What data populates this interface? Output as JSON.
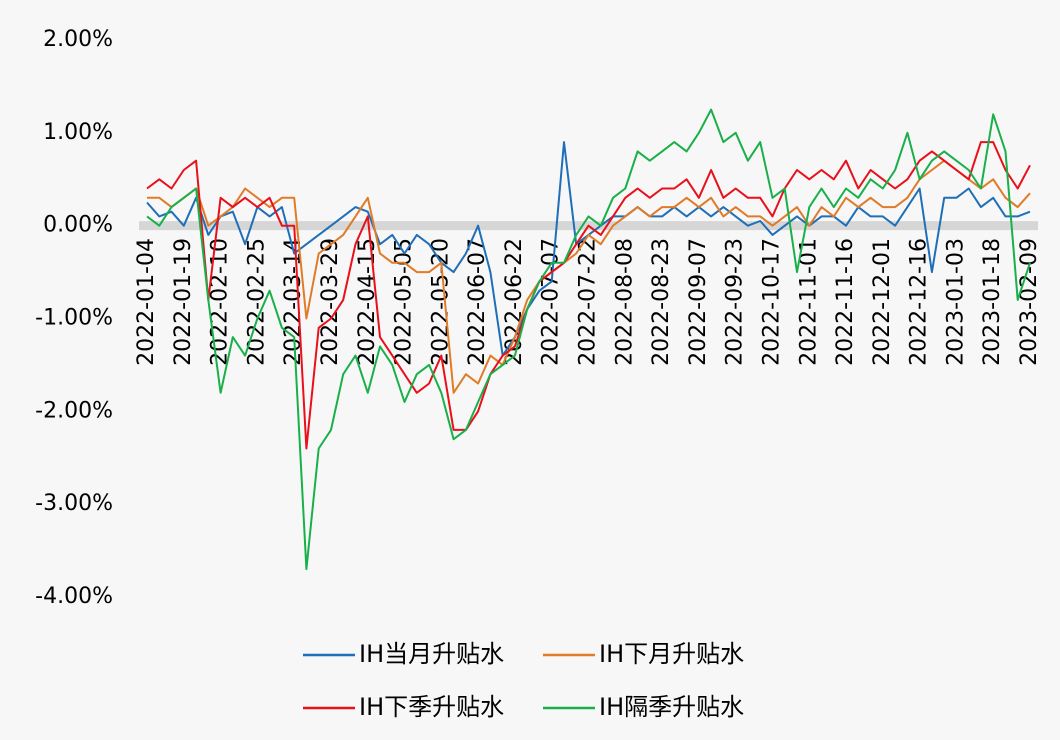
{
  "chart_data": {
    "type": "line",
    "categories": [
      "2022-01-04",
      null,
      null,
      "2022-01-19",
      null,
      null,
      "2022-02-10",
      null,
      null,
      "2022-02-25",
      null,
      null,
      "2022-03-14",
      null,
      null,
      "2022-03-29",
      null,
      null,
      "2022-04-15",
      null,
      null,
      "2022-05-05",
      null,
      null,
      "2022-05-20",
      null,
      null,
      "2022-06-07",
      null,
      null,
      "2022-06-22",
      null,
      null,
      "2022-07-07",
      null,
      null,
      "2022-07-22",
      null,
      null,
      "2022-08-08",
      null,
      null,
      "2022-08-23",
      null,
      null,
      "2022-09-07",
      null,
      null,
      "2022-09-23",
      null,
      null,
      "2022-10-17",
      null,
      null,
      "2022-11-01",
      null,
      null,
      "2022-11-16",
      null,
      null,
      "2022-12-01",
      null,
      null,
      "2022-12-16",
      null,
      null,
      "2023-01-03",
      null,
      null,
      "2023-01-18",
      null,
      null,
      "2023-02-09"
    ],
    "series": [
      {
        "name": "IH当月升贴水",
        "color": "#1f6fb8",
        "values": [
          0.25,
          0.1,
          0.15,
          0.0,
          0.3,
          -0.1,
          0.1,
          0.15,
          -0.2,
          0.2,
          0.1,
          0.2,
          -0.3,
          -0.2,
          -0.1,
          0.0,
          0.1,
          0.2,
          0.15,
          -0.2,
          -0.1,
          -0.3,
          -0.1,
          -0.2,
          -0.4,
          -0.5,
          -0.3,
          0.0,
          -0.5,
          -1.4,
          -1.2,
          -0.9,
          -0.7,
          -0.6,
          0.9,
          -0.2,
          -0.1,
          0.0,
          0.1,
          0.1,
          0.2,
          0.1,
          0.1,
          0.2,
          0.1,
          0.2,
          0.1,
          0.2,
          0.1,
          0.0,
          0.05,
          -0.1,
          0.0,
          0.1,
          0.0,
          0.1,
          0.1,
          0.0,
          0.2,
          0.1,
          0.1,
          0.0,
          0.2,
          0.4,
          -0.5,
          0.3,
          0.3,
          0.4,
          0.2,
          0.3,
          0.1,
          0.1,
          0.15
        ]
      },
      {
        "name": "IH下月升贴水",
        "color": "#e07b28",
        "values": [
          0.3,
          0.3,
          0.2,
          0.3,
          0.4,
          0.0,
          0.1,
          0.2,
          0.4,
          0.3,
          0.2,
          0.3,
          0.3,
          -1.0,
          -0.3,
          -0.2,
          -0.1,
          0.1,
          0.3,
          -0.3,
          -0.4,
          -0.4,
          -0.5,
          -0.5,
          -0.4,
          -1.8,
          -1.6,
          -1.7,
          -1.4,
          -1.5,
          -1.2,
          -0.8,
          -0.6,
          -0.5,
          -0.4,
          -0.3,
          -0.1,
          -0.2,
          0.0,
          0.1,
          0.2,
          0.1,
          0.2,
          0.2,
          0.3,
          0.2,
          0.3,
          0.1,
          0.2,
          0.1,
          0.1,
          0.0,
          0.1,
          0.2,
          0.0,
          0.2,
          0.1,
          0.3,
          0.2,
          0.3,
          0.2,
          0.2,
          0.3,
          0.5,
          0.6,
          0.7,
          0.6,
          0.5,
          0.4,
          0.5,
          0.3,
          0.2,
          0.35
        ]
      },
      {
        "name": "IH下季升贴水",
        "color": "#e8101a",
        "values": [
          0.4,
          0.5,
          0.4,
          0.6,
          0.7,
          -0.8,
          0.3,
          0.2,
          0.3,
          0.2,
          0.3,
          0.0,
          0.0,
          -2.4,
          -1.1,
          -1.0,
          -0.8,
          -0.2,
          0.1,
          -1.2,
          -1.4,
          -1.6,
          -1.8,
          -1.7,
          -1.4,
          -2.2,
          -2.2,
          -2.0,
          -1.6,
          -1.4,
          -1.3,
          -0.9,
          -0.6,
          -0.5,
          -0.4,
          -0.2,
          0.0,
          -0.1,
          0.1,
          0.3,
          0.4,
          0.3,
          0.4,
          0.4,
          0.5,
          0.3,
          0.6,
          0.3,
          0.4,
          0.3,
          0.3,
          0.1,
          0.4,
          0.6,
          0.5,
          0.6,
          0.5,
          0.7,
          0.4,
          0.6,
          0.5,
          0.4,
          0.5,
          0.7,
          0.8,
          0.7,
          0.6,
          0.5,
          0.9,
          0.9,
          0.6,
          0.4,
          0.65
        ]
      },
      {
        "name": "IH隔季升贴水",
        "color": "#19b04a",
        "values": [
          0.1,
          0.0,
          0.2,
          0.3,
          0.4,
          -0.8,
          -1.8,
          -1.2,
          -1.4,
          -1.0,
          -0.7,
          -1.1,
          -1.2,
          -3.7,
          -2.4,
          -2.2,
          -1.6,
          -1.4,
          -1.8,
          -1.3,
          -1.5,
          -1.9,
          -1.6,
          -1.5,
          -1.8,
          -2.3,
          -2.2,
          -1.9,
          -1.6,
          -1.5,
          -1.4,
          -0.9,
          -0.6,
          -0.4,
          -0.4,
          -0.1,
          0.1,
          0.0,
          0.3,
          0.4,
          0.8,
          0.7,
          0.8,
          0.9,
          0.8,
          1.0,
          1.25,
          0.9,
          1.0,
          0.7,
          0.9,
          0.3,
          0.4,
          -0.5,
          0.2,
          0.4,
          0.2,
          0.4,
          0.3,
          0.5,
          0.4,
          0.6,
          1.0,
          0.5,
          0.7,
          0.8,
          0.7,
          0.6,
          0.4,
          1.2,
          0.8,
          -0.8,
          -0.4
        ]
      }
    ],
    "ylim": [
      -4,
      2
    ],
    "yticks": [
      {
        "value": -4,
        "label": "-4.00%"
      },
      {
        "value": -3,
        "label": "-3.00%"
      },
      {
        "value": -2,
        "label": "-2.00%"
      },
      {
        "value": -1,
        "label": "-1.00%"
      },
      {
        "value": 0,
        "label": "0.00%"
      },
      {
        "value": 1,
        "label": "1.00%"
      },
      {
        "value": 2,
        "label": "2.00%"
      }
    ],
    "grid": false,
    "legend": "bottom"
  }
}
